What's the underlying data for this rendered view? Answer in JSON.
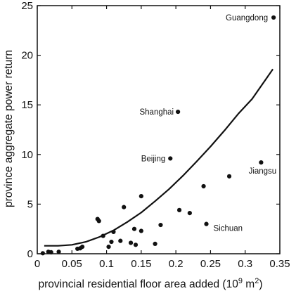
{
  "chart_data": {
    "type": "scatter",
    "title": "",
    "xlabel": "provincial residential floor area added (10",
    "xlabel_superscript": "9",
    "xlabel_suffix": " m",
    "xlabel_unit_superscript": "2",
    "xlabel_close": ")",
    "ylabel": "province aggregate power return",
    "xlim": [
      0,
      0.35
    ],
    "ylim": [
      0,
      25
    ],
    "x_ticks": [
      0,
      0.05,
      0.1,
      0.15,
      0.2,
      0.25,
      0.3,
      0.35
    ],
    "x_tick_labels": [
      "0",
      "0.05",
      "0.1",
      "0.15",
      "0.2",
      "0.25",
      "0.3",
      "0.35"
    ],
    "y_ticks": [
      0,
      5,
      10,
      15,
      20,
      25
    ],
    "y_tick_labels": [
      "0",
      "5",
      "10",
      "15",
      "20",
      "25"
    ],
    "grid": false,
    "colors": {
      "points": "#111111",
      "fit_line": "#111111",
      "axes": "#111111"
    },
    "points": [
      {
        "x": 0.008,
        "y": 0.05,
        "label": ""
      },
      {
        "x": 0.016,
        "y": 0.2,
        "label": ""
      },
      {
        "x": 0.02,
        "y": 0.15,
        "label": ""
      },
      {
        "x": 0.031,
        "y": 0.2,
        "label": ""
      },
      {
        "x": 0.058,
        "y": 0.5,
        "label": ""
      },
      {
        "x": 0.062,
        "y": 0.55,
        "label": ""
      },
      {
        "x": 0.065,
        "y": 0.7,
        "label": ""
      },
      {
        "x": 0.087,
        "y": 3.5,
        "label": ""
      },
      {
        "x": 0.089,
        "y": 3.3,
        "label": ""
      },
      {
        "x": 0.095,
        "y": 1.8,
        "label": ""
      },
      {
        "x": 0.103,
        "y": 0.7,
        "label": ""
      },
      {
        "x": 0.107,
        "y": 1.2,
        "label": ""
      },
      {
        "x": 0.11,
        "y": 2.2,
        "label": ""
      },
      {
        "x": 0.12,
        "y": 1.3,
        "label": ""
      },
      {
        "x": 0.125,
        "y": 4.7,
        "label": ""
      },
      {
        "x": 0.135,
        "y": 1.1,
        "label": ""
      },
      {
        "x": 0.14,
        "y": 2.5,
        "label": ""
      },
      {
        "x": 0.142,
        "y": 0.9,
        "label": ""
      },
      {
        "x": 0.15,
        "y": 5.8,
        "label": ""
      },
      {
        "x": 0.15,
        "y": 2.3,
        "label": ""
      },
      {
        "x": 0.17,
        "y": 1.0,
        "label": ""
      },
      {
        "x": 0.178,
        "y": 2.9,
        "label": ""
      },
      {
        "x": 0.192,
        "y": 9.6,
        "label": "Beijing"
      },
      {
        "x": 0.203,
        "y": 14.3,
        "label": "Shanghai"
      },
      {
        "x": 0.205,
        "y": 4.4,
        "label": ""
      },
      {
        "x": 0.22,
        "y": 4.1,
        "label": ""
      },
      {
        "x": 0.24,
        "y": 6.8,
        "label": ""
      },
      {
        "x": 0.244,
        "y": 3.0,
        "label": "Sichuan"
      },
      {
        "x": 0.277,
        "y": 7.8,
        "label": ""
      },
      {
        "x": 0.323,
        "y": 9.2,
        "label": "Jiangsu"
      },
      {
        "x": 0.341,
        "y": 23.8,
        "label": "Guangdong"
      }
    ],
    "fit_curve": {
      "type": "line",
      "x": [
        0.01,
        0.03,
        0.05,
        0.07,
        0.09,
        0.11,
        0.13,
        0.15,
        0.17,
        0.19,
        0.21,
        0.23,
        0.25,
        0.27,
        0.29,
        0.31,
        0.33,
        0.34
      ],
      "y": [
        0.8,
        0.8,
        0.9,
        1.2,
        1.7,
        2.35,
        3.2,
        4.15,
        5.3,
        6.5,
        7.85,
        9.3,
        10.8,
        12.4,
        14.1,
        15.6,
        17.6,
        18.6
      ]
    }
  }
}
